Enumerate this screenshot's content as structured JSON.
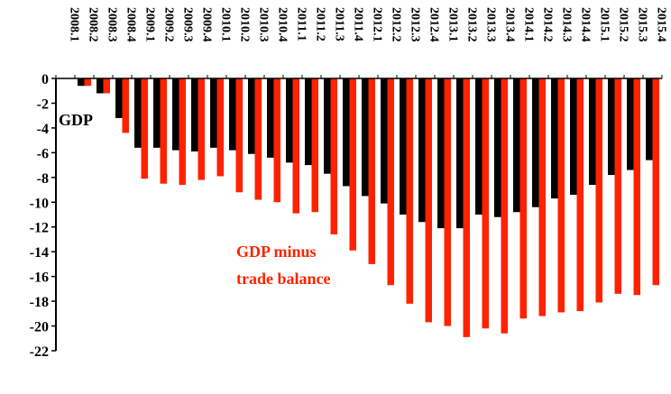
{
  "chart_data": {
    "type": "bar",
    "categories": [
      "2008.1",
      "2008.2",
      "2008.3",
      "2008.4",
      "2009.1",
      "2009.2",
      "2009.3",
      "2009.4",
      "2010.1",
      "2010.2",
      "2010.3",
      "2010.4",
      "2011.1",
      "2011.2",
      "2011.3",
      "2011.4",
      "2012.1",
      "2012.2",
      "2012.3",
      "2012.4",
      "2013.1",
      "2013.2",
      "2013.3",
      "2013.4",
      "2014.1",
      "2014.2",
      "2014.3",
      "2014.4",
      "2015.1",
      "2015.2",
      "2015.3",
      "2015.4"
    ],
    "tick_labels": [
      "2008.1",
      "2008.2",
      "2008.3",
      "2008.4",
      "2009.1",
      "2009.2",
      "2009.3",
      "2009.4",
      "2010.1",
      "2010.2",
      "2010.3",
      "2010.4",
      "2011.1",
      "2011.2",
      "2011.3",
      "2011.4",
      "2012.1",
      "2012.2",
      "2012.3",
      "2012.4",
      "2013.1",
      "2013.2",
      "2013.3",
      "2013.4",
      "2014.1",
      "2014.2",
      "2014.3",
      "2014.4",
      "2015.1",
      "2015.2",
      "2015.3",
      "2015.4"
    ],
    "series": [
      {
        "name": "GDP",
        "color": "#000000",
        "values": [
          0,
          -0.6,
          -1.2,
          -3.2,
          -5.6,
          -5.6,
          -5.8,
          -5.9,
          -5.6,
          -5.8,
          -6.1,
          -6.4,
          -6.8,
          -7.0,
          -7.7,
          -8.7,
          -9.5,
          -10.1,
          -11.0,
          -11.6,
          -12.1,
          -12.1,
          -11.0,
          -11.2,
          -10.8,
          -10.4,
          -9.7,
          -9.4,
          -8.6,
          -7.8,
          -7.4,
          -6.6
        ]
      },
      {
        "name": "GDP minus\ntrade balance",
        "color": "#ff2200",
        "values": [
          0,
          -0.6,
          -1.2,
          -4.4,
          -8.1,
          -8.5,
          -8.6,
          -8.2,
          -7.9,
          -9.2,
          -9.8,
          -10.0,
          -10.9,
          -10.8,
          -12.6,
          -13.9,
          -15.0,
          -16.7,
          -18.2,
          -19.7,
          -20.0,
          -20.9,
          -20.2,
          -20.6,
          -19.4,
          -19.2,
          -18.9,
          -18.8,
          -18.1,
          -17.4,
          -17.5,
          -16.7
        ]
      }
    ],
    "annotations": {
      "gdp_label": "GDP",
      "gdp_minus_line1": "GDP minus",
      "gdp_minus_line2": "trade balance"
    },
    "ylim": [
      -22,
      0
    ],
    "yticks": [
      0,
      -2,
      -4,
      -6,
      -8,
      -10,
      -12,
      -14,
      -16,
      -18,
      -20,
      -22
    ],
    "title": "",
    "xlabel": "",
    "ylabel": "",
    "grid": false,
    "legend": "none (inline annotations)"
  }
}
